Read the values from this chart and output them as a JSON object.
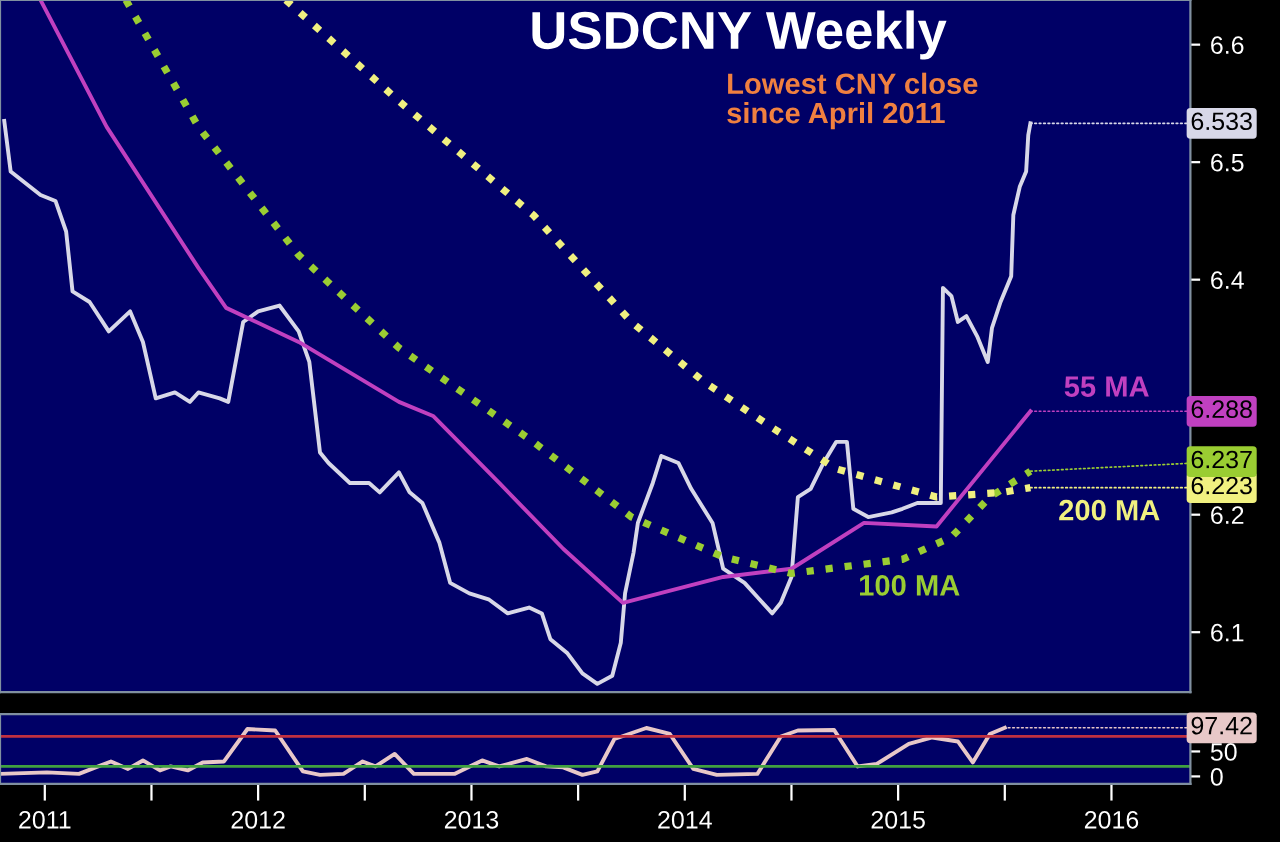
{
  "chart_data": [
    {
      "type": "line",
      "title": "USDCNY Weekly",
      "tick_labels": "y",
      "grid": false,
      "xlim": [
        2011.29,
        2016.87
      ],
      "ylim": [
        6.049,
        6.638
      ],
      "yticks": [
        6.1,
        6.2,
        {
          "value": 6.3,
          "label": null
        },
        6.4,
        6.5,
        6.6
      ],
      "series": [
        {
          "color": "#d8d8e8",
          "line_style": "solid",
          "x": [
            2011.31,
            2011.34,
            2011.48,
            2011.55,
            2011.6,
            2011.63,
            2011.71,
            2011.8,
            2011.9,
            2011.96,
            2012.02,
            2012.11,
            2012.18,
            2012.22,
            2012.32,
            2012.36,
            2012.43,
            2012.5,
            2012.6,
            2012.69,
            2012.74,
            2012.79,
            2012.83,
            2012.93,
            2013.02,
            2013.07,
            2013.16,
            2013.21,
            2013.27,
            2013.35,
            2013.4,
            2013.49,
            2013.58,
            2013.67,
            2013.77,
            2013.83,
            2013.87,
            2013.95,
            2014.02,
            2014.09,
            2014.16,
            2014.2,
            2014.22,
            2014.26,
            2014.28,
            2014.35,
            2014.39,
            2014.47,
            2014.53,
            2014.63,
            2014.68,
            2014.78,
            2014.84,
            2014.91,
            2014.95,
            2015.0,
            2015.03,
            2015.09,
            2015.15,
            2015.21,
            2015.26,
            2015.29,
            2015.36,
            2015.47,
            2015.52,
            2015.59,
            2015.7,
            2015.71,
            2015.75,
            2015.78,
            2015.82,
            2015.87,
            2015.92,
            2015.94,
            2015.98,
            2016.03,
            2016.04,
            2016.07,
            2016.1,
            2016.11,
            2016.12
          ],
          "values": [
            6.535,
            6.492,
            6.472,
            6.467,
            6.441,
            6.39,
            6.381,
            6.356,
            6.373,
            6.347,
            6.299,
            6.304,
            6.296,
            6.304,
            6.299,
            6.296,
            6.364,
            6.373,
            6.378,
            6.356,
            6.33,
            6.253,
            6.244,
            6.227,
            6.227,
            6.219,
            6.236,
            6.219,
            6.21,
            6.176,
            6.142,
            6.133,
            6.128,
            6.116,
            6.121,
            6.116,
            6.094,
            6.082,
            6.065,
            6.056,
            6.063,
            6.091,
            6.133,
            6.168,
            6.193,
            6.227,
            6.25,
            6.244,
            6.222,
            6.193,
            6.154,
            6.142,
            6.13,
            6.116,
            6.125,
            6.147,
            6.215,
            6.222,
            6.244,
            6.262,
            6.262,
            6.205,
            6.198,
            6.202,
            6.205,
            6.21,
            6.21,
            6.393,
            6.386,
            6.364,
            6.369,
            6.352,
            6.33,
            6.359,
            6.381,
            6.403,
            6.455,
            6.479,
            6.492,
            6.523,
            6.533
          ],
          "value_labels": [
            null,
            null,
            null,
            null,
            null,
            null,
            null,
            null,
            null,
            null,
            null,
            null,
            null,
            null,
            null,
            null,
            null,
            null,
            null,
            null,
            null,
            null,
            null,
            null,
            null,
            null,
            null,
            null,
            null,
            null,
            null,
            null,
            null,
            null,
            null,
            null,
            null,
            null,
            null,
            null,
            null,
            null,
            null,
            null,
            null,
            null,
            null,
            null,
            null,
            null,
            null,
            null,
            null,
            null,
            null,
            null,
            null,
            null,
            null,
            null,
            null,
            null,
            null,
            null,
            null,
            null,
            null,
            null,
            null,
            null,
            null,
            null,
            null,
            null,
            null,
            null,
            null,
            null,
            null,
            null,
            "6.533"
          ]
        },
        {
          "color": "#c040c0",
          "line_style": "solid",
          "x": [
            2011.48,
            2011.79,
            2012.22,
            2012.35,
            2012.69,
            2013.16,
            2013.32,
            2013.63,
            2013.93,
            2014.21,
            2014.68,
            2015.0,
            2015.34,
            2015.68,
            2015.9,
            2016.12
          ],
          "values": [
            6.638,
            6.53,
            6.41,
            6.376,
            6.347,
            6.296,
            6.284,
            6.227,
            6.171,
            6.125,
            6.147,
            6.154,
            6.193,
            6.19,
            6.239,
            6.288
          ],
          "value_labels": [
            null,
            null,
            null,
            null,
            null,
            null,
            null,
            null,
            null,
            null,
            null,
            null,
            null,
            null,
            null,
            "6.288"
          ]
        },
        {
          "color": "#9acd32",
          "line_style": "dotted",
          "x": [
            2011.88,
            2012.22,
            2012.69,
            2013.16,
            2013.79,
            2014.25,
            2014.68,
            2015.0,
            2015.52,
            2015.75,
            2015.93,
            2016.12
          ],
          "values": [
            6.638,
            6.53,
            6.421,
            6.342,
            6.262,
            6.198,
            6.164,
            6.15,
            6.162,
            6.181,
            6.215,
            6.237
          ],
          "value_labels": [
            null,
            null,
            null,
            null,
            null,
            null,
            null,
            null,
            null,
            null,
            null,
            "6.237"
          ]
        },
        {
          "color": "#f0f080",
          "line_style": "dotted",
          "x": [
            2012.63,
            2013.16,
            2013.79,
            2014.25,
            2014.59,
            2014.91,
            2015.21,
            2015.68,
            2015.99,
            2016.12
          ],
          "values": [
            6.638,
            6.552,
            6.455,
            6.364,
            6.313,
            6.274,
            6.239,
            6.215,
            6.219,
            6.223
          ],
          "value_labels": [
            null,
            null,
            null,
            null,
            null,
            null,
            null,
            null,
            null,
            "6.223"
          ]
        }
      ],
      "annotations": [
        "Lowest CNY close\nsince April 2011",
        "55 MA",
        "100 MA",
        "200 MA"
      ]
    },
    {
      "type": "line",
      "grid": false,
      "xlim": [
        2011.29,
        2016.87
      ],
      "ylim": [
        -15,
        125
      ],
      "xticks": [
        {
          "value": 2011.5,
          "label": "2011"
        },
        {
          "value": 2012,
          "label": null
        },
        {
          "value": 2012.5,
          "label": "2012"
        },
        {
          "value": 2013,
          "label": null
        },
        {
          "value": 2013.5,
          "label": "2013"
        },
        {
          "value": 2014,
          "label": null
        },
        {
          "value": 2014.5,
          "label": "2014"
        },
        {
          "value": 2015,
          "label": null
        },
        {
          "value": 2015.5,
          "label": "2015"
        },
        {
          "value": 2016,
          "label": null
        },
        {
          "value": 2016.5,
          "label": "2016"
        }
      ],
      "yticks": [
        0,
        50
      ],
      "ref_lines": [
        {
          "axis": "y",
          "value": 80,
          "color": "#c03040"
        },
        {
          "axis": "y",
          "value": 20,
          "color": "#40a040"
        }
      ],
      "series": [
        {
          "color": "#e8c8c8",
          "line_style": "solid",
          "x": [
            2011.29,
            2011.51,
            2011.66,
            2011.81,
            2011.89,
            2011.96,
            2012.04,
            2012.09,
            2012.17,
            2012.24,
            2012.34,
            2012.45,
            2012.58,
            2012.71,
            2012.79,
            2012.9,
            2012.99,
            2013.05,
            2013.14,
            2013.23,
            2013.42,
            2013.55,
            2013.63,
            2013.76,
            2013.85,
            2013.93,
            2014.02,
            2014.09,
            2014.17,
            2014.32,
            2014.43,
            2014.54,
            2014.65,
            2014.84,
            2014.95,
            2015.03,
            2015.2,
            2015.31,
            2015.4,
            2015.55,
            2015.66,
            2015.78,
            2015.85,
            2015.93,
            2016.0
          ],
          "values": [
            5,
            8,
            5,
            30,
            15,
            32,
            12,
            20,
            12,
            28,
            30,
            95,
            92,
            10,
            3,
            5,
            30,
            20,
            45,
            5,
            5,
            32,
            20,
            35,
            20,
            18,
            3,
            10,
            75,
            97,
            85,
            15,
            3,
            5,
            80,
            92,
            93,
            20,
            25,
            65,
            78,
            70,
            28,
            85,
            97.42
          ],
          "value_labels": [
            null,
            null,
            null,
            null,
            null,
            null,
            null,
            null,
            null,
            null,
            null,
            null,
            null,
            null,
            null,
            null,
            null,
            null,
            null,
            null,
            null,
            null,
            null,
            null,
            null,
            null,
            null,
            null,
            null,
            null,
            null,
            null,
            null,
            null,
            null,
            null,
            null,
            null,
            null,
            null,
            null,
            null,
            null,
            null,
            "97.42"
          ]
        }
      ]
    }
  ]
}
